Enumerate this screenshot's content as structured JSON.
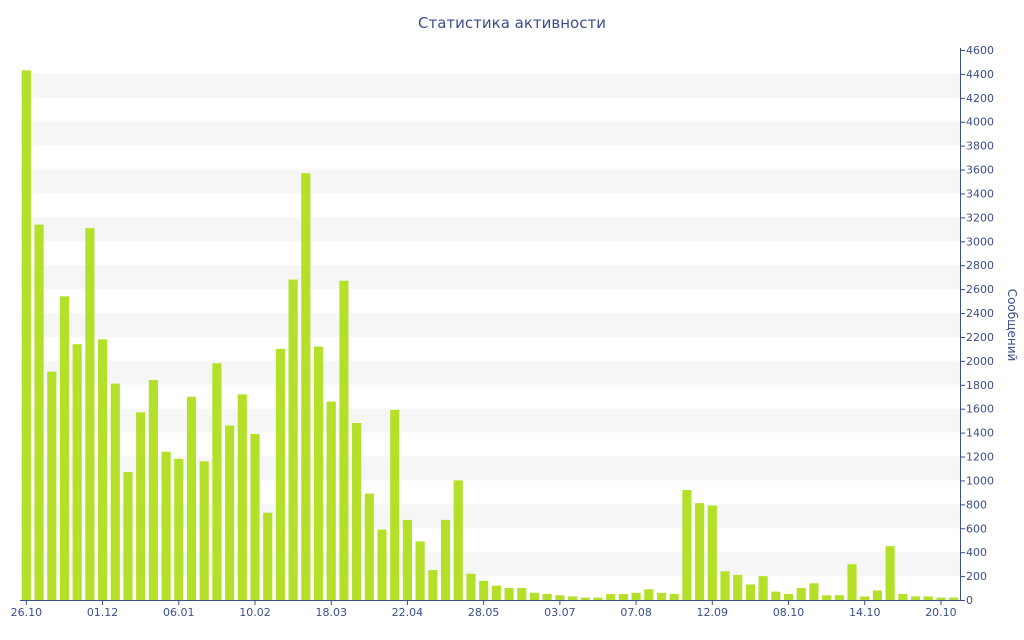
{
  "chart_data": {
    "type": "bar",
    "title": "Статистика активности",
    "ylabel": "Сообщений",
    "ylim": [
      0,
      4600
    ],
    "y_ticks": [
      0,
      200,
      400,
      600,
      800,
      1000,
      1200,
      1400,
      1600,
      1800,
      2000,
      2200,
      2400,
      2600,
      2800,
      3000,
      3200,
      3400,
      3600,
      3800,
      4000,
      4200,
      4400,
      4600
    ],
    "x_tick_labels": [
      {
        "index": 0,
        "label": "26.10"
      },
      {
        "index": 6,
        "label": "01.12"
      },
      {
        "index": 12,
        "label": "06.01"
      },
      {
        "index": 18,
        "label": "10.02"
      },
      {
        "index": 24,
        "label": "18.03"
      },
      {
        "index": 30,
        "label": "22.04"
      },
      {
        "index": 36,
        "label": "28.05"
      },
      {
        "index": 42,
        "label": "03.07"
      },
      {
        "index": 48,
        "label": "07.08"
      },
      {
        "index": 54,
        "label": "12.09"
      },
      {
        "index": 60,
        "label": "08.10"
      },
      {
        "index": 66,
        "label": "14.10"
      },
      {
        "index": 72,
        "label": "20.10"
      }
    ],
    "values": [
      4430,
      3140,
      1910,
      2540,
      2140,
      3110,
      2180,
      1810,
      1070,
      1570,
      1840,
      1240,
      1180,
      1700,
      1160,
      1980,
      1460,
      1720,
      1390,
      730,
      2100,
      2680,
      3570,
      2120,
      1660,
      2670,
      1480,
      890,
      590,
      1590,
      670,
      490,
      250,
      670,
      1000,
      220,
      160,
      120,
      100,
      100,
      60,
      50,
      40,
      30,
      20,
      20,
      50,
      50,
      60,
      90,
      60,
      50,
      920,
      810,
      790,
      240,
      210,
      130,
      200,
      70,
      50,
      100,
      140,
      40,
      40,
      300,
      30,
      80,
      450,
      50,
      30,
      30,
      20,
      20
    ],
    "bar_color": "#b5e02a",
    "band_color": "#f6f6f6",
    "grid": "alternating horizontal bands",
    "y_axis_side": "right",
    "legend": "none"
  }
}
